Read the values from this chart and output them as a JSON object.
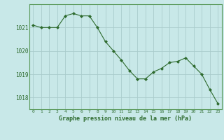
{
  "x": [
    0,
    1,
    2,
    3,
    4,
    5,
    6,
    7,
    8,
    9,
    10,
    11,
    12,
    13,
    14,
    15,
    16,
    17,
    18,
    19,
    20,
    21,
    22,
    23
  ],
  "y": [
    1021.1,
    1021.0,
    1021.0,
    1021.0,
    1021.5,
    1021.6,
    1021.5,
    1021.5,
    1021.0,
    1020.4,
    1020.0,
    1019.6,
    1019.15,
    1018.8,
    1018.8,
    1019.1,
    1019.25,
    1019.5,
    1019.55,
    1019.7,
    1019.35,
    1019.0,
    1018.35,
    1017.75
  ],
  "line_color": "#2d6a2d",
  "marker_color": "#2d6a2d",
  "bg_color": "#c8e8e8",
  "grid_color": "#aacccc",
  "xlabel": "Graphe pression niveau de la mer (hPa)",
  "xlabel_color": "#2d6a2d",
  "tick_color": "#2d6a2d",
  "ylim": [
    1017.5,
    1022.0
  ],
  "yticks": [
    1018,
    1019,
    1020,
    1021
  ],
  "xticks": [
    0,
    1,
    2,
    3,
    4,
    5,
    6,
    7,
    8,
    9,
    10,
    11,
    12,
    13,
    14,
    15,
    16,
    17,
    18,
    19,
    20,
    21,
    22,
    23
  ]
}
